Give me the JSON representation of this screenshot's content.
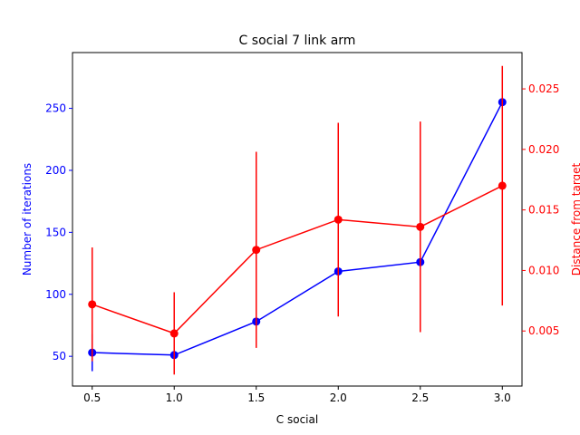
{
  "chart_data": {
    "type": "line",
    "title": "C social 7 link arm",
    "xlabel": "C social",
    "ylabel_left": "Number of iterations",
    "ylabel_right": "Distance from target",
    "x": [
      0.5,
      1.0,
      1.5,
      2.0,
      2.5,
      3.0
    ],
    "xlim": [
      0.38,
      3.12
    ],
    "xticks": [
      0.5,
      1.0,
      1.5,
      2.0,
      2.5,
      3.0
    ],
    "xtick_labels": [
      "0.5",
      "1.0",
      "1.5",
      "2.0",
      "2.5",
      "3.0"
    ],
    "ylim_left": [
      26,
      295
    ],
    "yticks_left": [
      50,
      100,
      150,
      200,
      250
    ],
    "ytick_labels_left": [
      "50",
      "100",
      "150",
      "200",
      "250"
    ],
    "ylim_right": [
      0.00045,
      0.028
    ],
    "yticks_right": [
      0.005,
      0.01,
      0.015,
      0.02,
      0.025
    ],
    "ytick_labels_right": [
      "0.005",
      "0.010",
      "0.015",
      "0.020",
      "0.025"
    ],
    "grid": false,
    "series": [
      {
        "axis": "left",
        "color": "#0000ff",
        "y": [
          53,
          51,
          78,
          118.5,
          126,
          255
        ],
        "err": [
          15,
          2,
          2,
          2,
          2,
          2
        ]
      },
      {
        "axis": "right",
        "color": "#ff0000",
        "y": [
          0.0072,
          0.0048,
          0.0117,
          0.0142,
          0.0136,
          0.017
        ],
        "err": [
          0.0047,
          0.0034,
          0.0081,
          0.008,
          0.0087,
          0.0099
        ]
      }
    ],
    "colors": {
      "left_axis": "#0000ff",
      "right_axis": "#ff0000",
      "frame": "#000000"
    }
  }
}
